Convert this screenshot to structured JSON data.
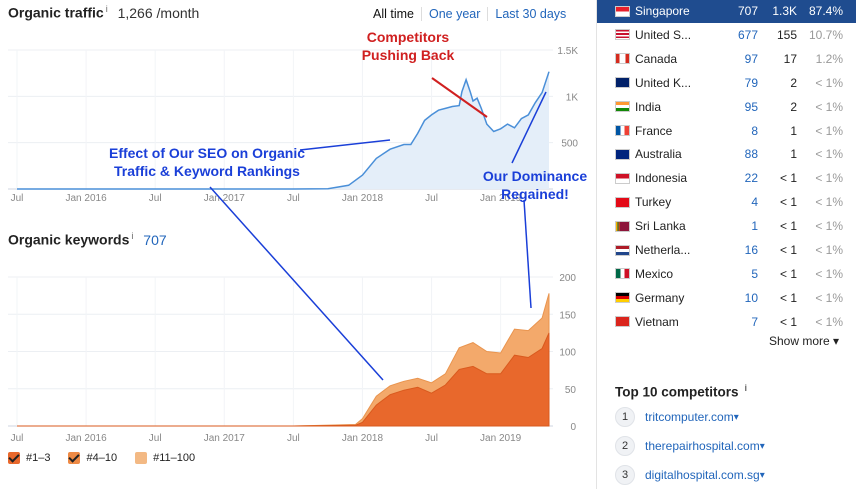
{
  "traffic": {
    "title": "Organic traffic",
    "info": "i",
    "value": "1,266 /month",
    "range_tabs": [
      "All time",
      "One year",
      "Last 30 days"
    ],
    "active_tab": "All time"
  },
  "keywords": {
    "title": "Organic keywords",
    "info": "i",
    "value": "707"
  },
  "annotations": {
    "competitors": "Competitors\nPushing Back",
    "seo_effect": "Effect of Our SEO on Organic\nTraffic & Keyword Rankings",
    "dominance": "Our Dominance\nRegained!"
  },
  "chart_data": [
    {
      "type": "area",
      "title": "Organic traffic",
      "x_tick_labels": [
        "Jul",
        "Jan 2016",
        "Jul",
        "Jan 2017",
        "Jul",
        "Jan 2018",
        "Jul",
        "Jan 2019"
      ],
      "y_tick_labels": [
        "1.5K",
        "1K",
        "500"
      ],
      "ylim": [
        0,
        1500
      ],
      "grid": true,
      "series": [
        {
          "values": [
            [
              2015.5,
              0
            ],
            [
              2016,
              0
            ],
            [
              2016.5,
              0
            ],
            [
              2017,
              0
            ],
            [
              2017.5,
              0
            ],
            [
              2017.75,
              3
            ],
            [
              2017.9,
              40
            ],
            [
              2018.0,
              150
            ],
            [
              2018.1,
              330
            ],
            [
              2018.2,
              430
            ],
            [
              2018.3,
              480
            ],
            [
              2018.35,
              480
            ],
            [
              2018.4,
              600
            ],
            [
              2018.45,
              740
            ],
            [
              2018.5,
              800
            ],
            [
              2018.55,
              850
            ],
            [
              2018.6,
              870
            ],
            [
              2018.65,
              890
            ],
            [
              2018.7,
              900
            ],
            [
              2018.72,
              1050
            ],
            [
              2018.75,
              1180
            ],
            [
              2018.78,
              1050
            ],
            [
              2018.8,
              950
            ],
            [
              2018.83,
              980
            ],
            [
              2018.86,
              870
            ],
            [
              2018.9,
              700
            ],
            [
              2018.95,
              620
            ],
            [
              2019.0,
              650
            ],
            [
              2019.05,
              700
            ],
            [
              2019.1,
              660
            ],
            [
              2019.15,
              760
            ],
            [
              2019.2,
              800
            ],
            [
              2019.25,
              930
            ],
            [
              2019.3,
              1040
            ],
            [
              2019.35,
              1266
            ]
          ]
        }
      ]
    },
    {
      "type": "area",
      "title": "Organic keywords",
      "x_tick_labels": [
        "Jul",
        "Jan 2016",
        "Jul",
        "Jan 2017",
        "Jul",
        "Jan 2018",
        "Jul",
        "Jan 2019"
      ],
      "y_tick_labels": [
        "200",
        "150",
        "100",
        "50",
        "0"
      ],
      "ylim": [
        0,
        200
      ],
      "grid": true,
      "legend": [
        "#1–3",
        "#4–10",
        "#11–100"
      ],
      "series": [
        {
          "name": "#1–3",
          "color": "#e8682c",
          "values": [
            [
              2015.5,
              0
            ],
            [
              2017.5,
              0
            ],
            [
              2017.95,
              1
            ],
            [
              2018.0,
              5
            ],
            [
              2018.1,
              28
            ],
            [
              2018.2,
              42
            ],
            [
              2018.3,
              48
            ],
            [
              2018.4,
              52
            ],
            [
              2018.5,
              44
            ],
            [
              2018.6,
              55
            ],
            [
              2018.7,
              76
            ],
            [
              2018.8,
              80
            ],
            [
              2018.9,
              70
            ],
            [
              2019.0,
              70
            ],
            [
              2019.1,
              95
            ],
            [
              2019.2,
              92
            ],
            [
              2019.3,
              104
            ],
            [
              2019.35,
              125
            ]
          ]
        },
        {
          "name": "#11–100",
          "color": "#f3a96b",
          "values": [
            [
              2015.5,
              0
            ],
            [
              2017.5,
              0
            ],
            [
              2017.95,
              2
            ],
            [
              2018.0,
              10
            ],
            [
              2018.1,
              40
            ],
            [
              2018.2,
              54
            ],
            [
              2018.3,
              60
            ],
            [
              2018.4,
              64
            ],
            [
              2018.5,
              58
            ],
            [
              2018.6,
              70
            ],
            [
              2018.7,
              105
            ],
            [
              2018.8,
              112
            ],
            [
              2018.9,
              100
            ],
            [
              2019.0,
              98
            ],
            [
              2019.1,
              130
            ],
            [
              2019.2,
              128
            ],
            [
              2019.3,
              145
            ],
            [
              2019.35,
              178
            ]
          ]
        }
      ]
    }
  ],
  "countries": [
    {
      "name": "Singapore",
      "keywords": "707",
      "traffic": "1.3K",
      "pct": "87.4%",
      "flag": "sg",
      "selected": true
    },
    {
      "name": "United S...",
      "keywords": "677",
      "traffic": "155",
      "pct": "10.7%",
      "flag": "us"
    },
    {
      "name": "Canada",
      "keywords": "97",
      "traffic": "17",
      "pct": "1.2%",
      "flag": "ca"
    },
    {
      "name": "United K...",
      "keywords": "79",
      "traffic": "2",
      "pct": "< 1%",
      "flag": "gb"
    },
    {
      "name": "India",
      "keywords": "95",
      "traffic": "2",
      "pct": "< 1%",
      "flag": "in"
    },
    {
      "name": "France",
      "keywords": "8",
      "traffic": "1",
      "pct": "< 1%",
      "flag": "fr"
    },
    {
      "name": "Australia",
      "keywords": "88",
      "traffic": "1",
      "pct": "< 1%",
      "flag": "au"
    },
    {
      "name": "Indonesia",
      "keywords": "22",
      "traffic": "< 1",
      "pct": "< 1%",
      "flag": "id"
    },
    {
      "name": "Turkey",
      "keywords": "4",
      "traffic": "< 1",
      "pct": "< 1%",
      "flag": "tr"
    },
    {
      "name": "Sri Lanka",
      "keywords": "1",
      "traffic": "< 1",
      "pct": "< 1%",
      "flag": "lk"
    },
    {
      "name": "Netherla...",
      "keywords": "16",
      "traffic": "< 1",
      "pct": "< 1%",
      "flag": "nl"
    },
    {
      "name": "Mexico",
      "keywords": "5",
      "traffic": "< 1",
      "pct": "< 1%",
      "flag": "mx"
    },
    {
      "name": "Germany",
      "keywords": "10",
      "traffic": "< 1",
      "pct": "< 1%",
      "flag": "de"
    },
    {
      "name": "Vietnam",
      "keywords": "7",
      "traffic": "< 1",
      "pct": "< 1%",
      "flag": "vn"
    }
  ],
  "show_more": "Show more",
  "competitors": {
    "title": "Top 10 competitors",
    "info": "i",
    "items": [
      {
        "rank": "1",
        "domain": "tritcomputer.com"
      },
      {
        "rank": "2",
        "domain": "therepairhospital.com"
      },
      {
        "rank": "3",
        "domain": "digitalhospital.com.sg"
      }
    ]
  }
}
